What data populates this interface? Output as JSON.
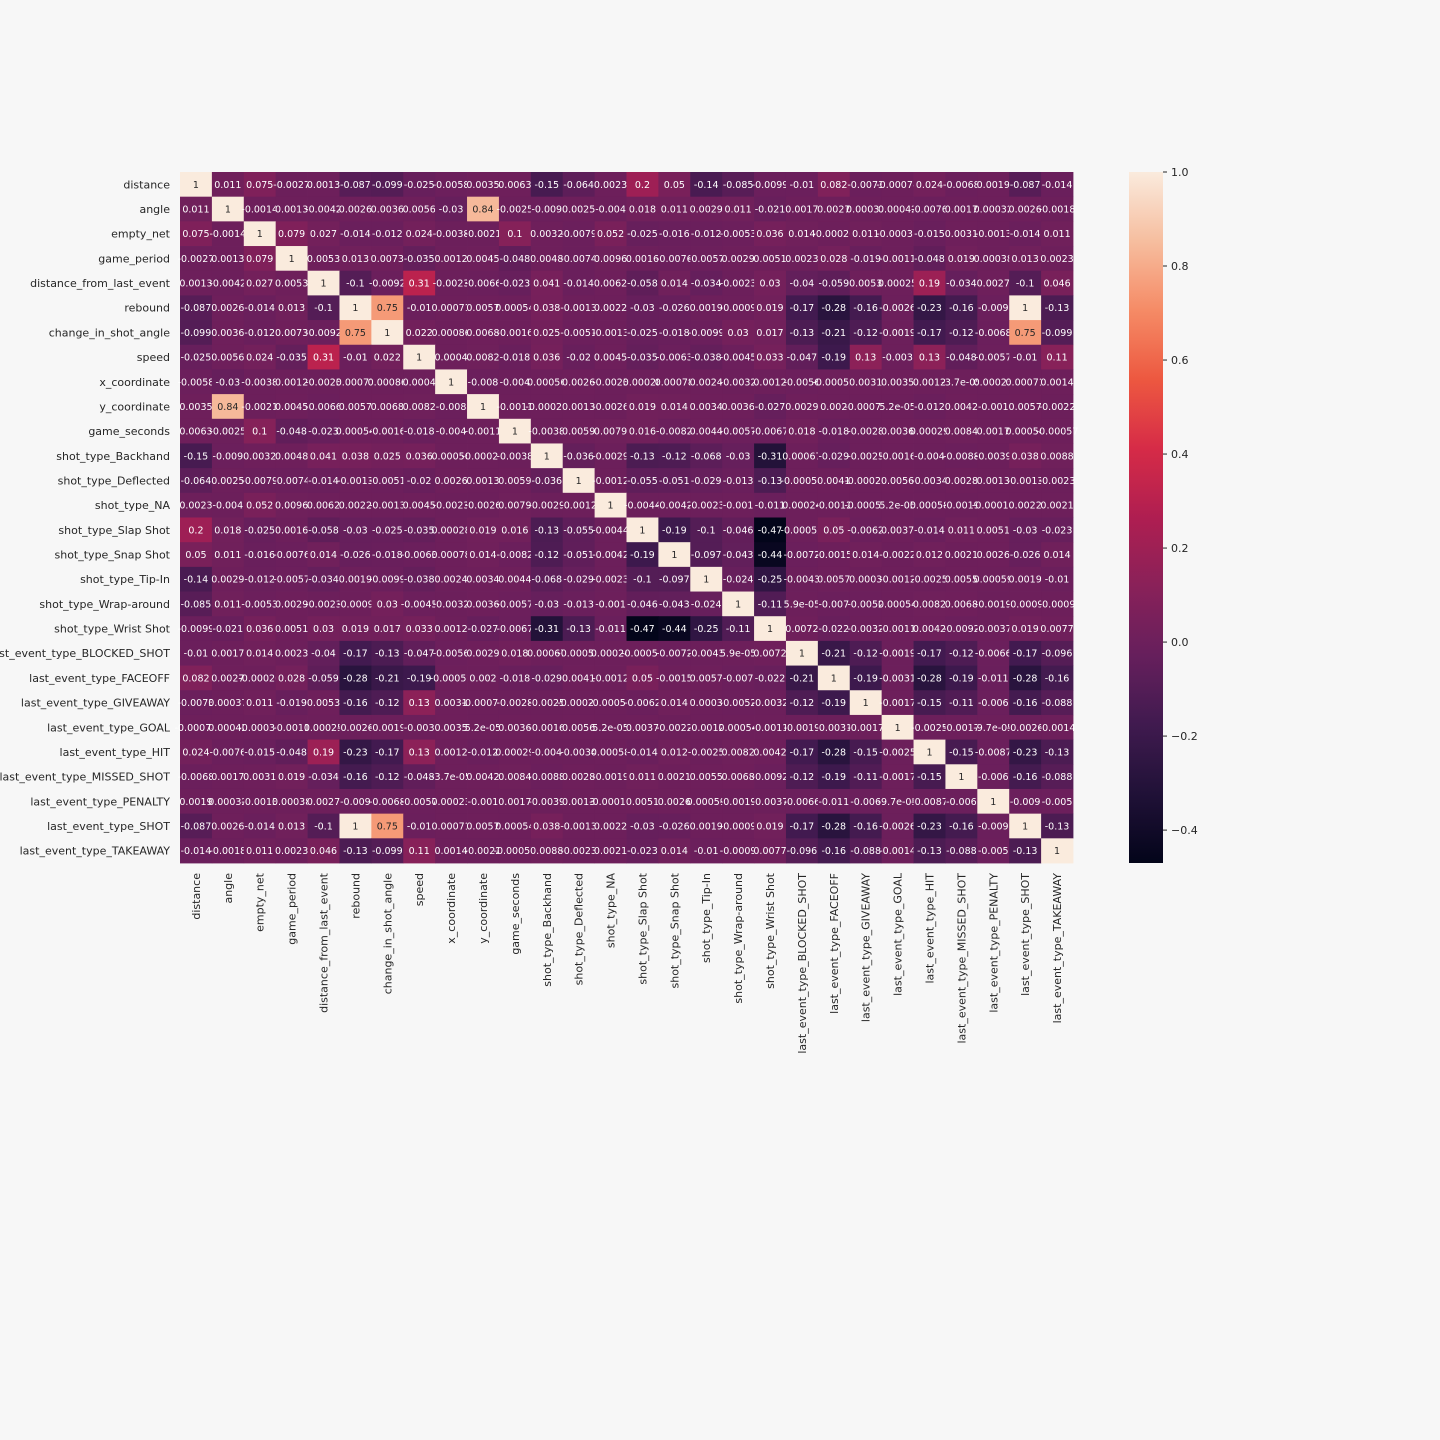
{
  "chart_data": {
    "type": "heatmap",
    "labels": [
      "distance",
      "angle",
      "empty_net",
      "game_period",
      "distance_from_last_event",
      "rebound",
      "change_in_shot_angle",
      "speed",
      "x_coordinate",
      "y_coordinate",
      "game_seconds",
      "shot_type_Backhand",
      "shot_type_Deflected",
      "shot_type_NA",
      "shot_type_Slap Shot",
      "shot_type_Snap Shot",
      "shot_type_Tip-In",
      "shot_type_Wrap-around",
      "shot_type_Wrist Shot",
      "last_event_type_BLOCKED_SHOT",
      "last_event_type_FACEOFF",
      "last_event_type_GIVEAWAY",
      "last_event_type_GOAL",
      "last_event_type_HIT",
      "last_event_type_MISSED_SHOT",
      "last_event_type_PENALTY",
      "last_event_type_SHOT",
      "last_event_type_TAKEAWAY"
    ],
    "cells": [
      [
        "1",
        "0.011",
        "0.075",
        "-0.0027",
        "0.0013",
        "-0.087",
        "-0.099",
        "-0.025",
        "-0.0058",
        "0.0035",
        "0.0063",
        "-0.15",
        "-0.064",
        "0.0023",
        "0.2",
        "0.05",
        "-0.14",
        "-0.085",
        "-0.0099",
        "-0.01",
        "0.082",
        "-0.0073",
        "-0.00074",
        "0.024",
        "-0.0068",
        "0.0019",
        "-0.087",
        "-0.014"
      ],
      [
        "0.011",
        "1",
        "-0.0014",
        "0.0013",
        "-0.0042",
        "0.0026",
        "0.0036",
        "0.0056",
        "-0.03",
        "0.84",
        "-0.0025",
        "-0.009",
        "0.0025",
        "-0.004",
        "0.018",
        "0.011",
        "0.0029",
        "0.011",
        "-0.021",
        "0.0017",
        "0.0027",
        "0.00037",
        "0.00042",
        "-0.0076",
        "0.0017",
        "0.00032",
        "0.0026",
        "-0.0018"
      ],
      [
        "0.075",
        "-0.0014",
        "1",
        "0.079",
        "0.027",
        "-0.014",
        "-0.012",
        "0.024",
        "-0.0038",
        "-0.0021",
        "0.1",
        "0.0032",
        "-0.0079",
        "0.052",
        "-0.025",
        "-0.016",
        "-0.012",
        "-0.0053",
        "0.036",
        "0.014",
        "-0.00026",
        "0.011",
        "-0.00036",
        "-0.015",
        "0.0031",
        "-0.0013",
        "-0.014",
        "0.011"
      ],
      [
        "-0.0027",
        "0.0013",
        "0.079",
        "1",
        "0.0053",
        "0.013",
        "0.0073",
        "-0.035",
        "0.0012",
        "0.0045",
        "-0.048",
        "0.0048",
        "-0.0074",
        "0.0096",
        "0.0016",
        "-0.0076",
        "-0.0057",
        "0.0029",
        "0.0051",
        "0.0023",
        "0.028",
        "-0.019",
        "-0.0011",
        "-0.048",
        "0.019",
        "0.00038",
        "0.013",
        "0.0023"
      ],
      [
        "0.0013",
        "-0.0042",
        "0.027",
        "0.0053",
        "1",
        "-0.1",
        "-0.0092",
        "0.31",
        "-0.0023",
        "-0.0066",
        "-0.023",
        "0.041",
        "-0.014",
        "0.0062",
        "-0.058",
        "0.014",
        "-0.034",
        "-0.0023",
        "0.03",
        "-0.04",
        "-0.059",
        "0.0053",
        "0.00025",
        "0.19",
        "-0.034",
        "0.0027",
        "-0.1",
        "0.046"
      ],
      [
        "-0.087",
        "0.0026",
        "-0.014",
        "0.013",
        "-0.1",
        "1",
        "0.75",
        "-0.01",
        "0.00071",
        "0.0057",
        "0.00054",
        "0.038",
        "-0.0013",
        "0.0022",
        "-0.03",
        "-0.026",
        "0.0019",
        "-0.0009",
        "0.019",
        "-0.17",
        "-0.28",
        "-0.16",
        "-0.0026",
        "-0.23",
        "-0.16",
        "-0.009",
        "1",
        "-0.13"
      ],
      [
        "-0.099",
        "0.0036",
        "-0.012",
        "0.0073",
        "-0.0092",
        "0.75",
        "1",
        "0.022",
        "0.00086",
        "0.0068",
        "-0.0016",
        "0.025",
        "-0.0051",
        "-0.0013",
        "-0.025",
        "-0.018",
        "-0.0099",
        "0.03",
        "0.017",
        "-0.13",
        "-0.21",
        "-0.12",
        "-0.0019",
        "-0.17",
        "-0.12",
        "-0.0068",
        "0.75",
        "-0.099"
      ],
      [
        "-0.025",
        "0.0056",
        "0.024",
        "-0.035",
        "0.31",
        "-0.01",
        "0.022",
        "1",
        "0.0004",
        "0.0082",
        "-0.018",
        "0.036",
        "-0.02",
        "0.0045",
        "-0.035",
        "-0.0063",
        "-0.038",
        "-0.0045",
        "0.033",
        "-0.047",
        "-0.19",
        "0.13",
        "-0.003",
        "0.13",
        "-0.048",
        "-0.0057",
        "-0.01",
        "0.11"
      ],
      [
        "-0.0058",
        "-0.03",
        "-0.0038",
        "0.0012",
        "-0.0023",
        "0.00071",
        "0.00086",
        "0.0004",
        "1",
        "-0.008",
        "-0.004",
        "0.00056",
        "0.0026",
        "-0.0023",
        "0.00028",
        "0.00078",
        "0.0024",
        "-0.0032",
        "0.0012",
        "-0.0056",
        "-0.00052",
        "0.0031",
        "0.0035",
        "0.0012",
        "-3.7e-05",
        "0.00023",
        "0.00071",
        "0.0014"
      ],
      [
        "0.0035",
        "0.84",
        "-0.0021",
        "0.0045",
        "-0.0066",
        "0.0057",
        "0.0068",
        "0.0082",
        "-0.008",
        "1",
        "-0.0011",
        "-0.00023",
        "0.0013",
        "-0.0026",
        "0.019",
        "0.014",
        "0.0034",
        "0.0036",
        "-0.027",
        "0.0029",
        "0.002",
        "-0.00076",
        "5.2e-05",
        "-0.012",
        "0.0042",
        "-0.001",
        "0.0057",
        "-0.0022"
      ],
      [
        "0.0063",
        "-0.0025",
        "0.1",
        "-0.048",
        "-0.023",
        "0.00054",
        "-0.0016",
        "-0.018",
        "-0.004",
        "-0.0011",
        "1",
        "-0.0038",
        "0.0059",
        "0.0079",
        "0.016",
        "-0.0082",
        "0.0044",
        "-0.0057",
        "-0.0067",
        "0.018",
        "-0.018",
        "-0.0028",
        "0.0036",
        "0.00029",
        "0.0084",
        "0.0017",
        "0.00054",
        "-0.00057"
      ],
      [
        "-0.15",
        "-0.009",
        "0.0032",
        "0.0048",
        "0.041",
        "0.038",
        "0.025",
        "0.036",
        "0.00056",
        "-0.00023",
        "-0.0038",
        "1",
        "-0.036",
        "-0.0029",
        "-0.13",
        "-0.12",
        "-0.068",
        "-0.03",
        "-0.31",
        "0.00067",
        "-0.029",
        "-0.0025",
        "-0.0016",
        "-0.004",
        "-0.0088",
        "-0.0039",
        "0.038",
        "0.0088"
      ],
      [
        "-0.064",
        "0.0025",
        "-0.0079",
        "-0.0074",
        "-0.014",
        "-0.0013",
        "-0.0051",
        "-0.02",
        "0.0026",
        "0.0013",
        "0.0059",
        "-0.036",
        "1",
        "-0.0012",
        "-0.055",
        "-0.051",
        "-0.029",
        "-0.013",
        "-0.13",
        "-0.00058",
        "0.0041",
        "-0.00022",
        "0.0056",
        "-0.0034",
        "0.0028",
        "0.0013",
        "-0.0013",
        "-0.0023"
      ],
      [
        "0.0023",
        "-0.004",
        "0.052",
        "0.0096",
        "0.0062",
        "0.0022",
        "-0.0013",
        "0.0045",
        "-0.0023",
        "-0.0026",
        "0.0079",
        "-0.0029",
        "-0.0012",
        "1",
        "-0.0044",
        "-0.0042",
        "-0.0023",
        "-0.001",
        "-0.011",
        "0.00024",
        "-0.0012",
        "-0.00052",
        "5.2e-05",
        "0.00058",
        "-0.0019",
        "-0.00018",
        "0.0022",
        "0.0021"
      ],
      [
        "0.2",
        "0.018",
        "-0.025",
        "0.0016",
        "-0.058",
        "-0.03",
        "-0.025",
        "-0.035",
        "0.00028",
        "0.019",
        "0.016",
        "-0.13",
        "-0.055",
        "-0.0044",
        "1",
        "-0.19",
        "-0.1",
        "-0.046",
        "-0.47",
        "-0.00052",
        "0.05",
        "-0.0062",
        "0.0037",
        "-0.014",
        "0.011",
        "0.0051",
        "-0.03",
        "-0.023"
      ],
      [
        "0.05",
        "0.011",
        "-0.016",
        "-0.0076",
        "0.014",
        "-0.026",
        "-0.018",
        "-0.0063",
        "0.00078",
        "0.014",
        "-0.0082",
        "-0.12",
        "-0.051",
        "-0.0042",
        "-0.19",
        "1",
        "-0.097",
        "-0.043",
        "-0.44",
        "-0.0072",
        "-0.0015",
        "0.014",
        "-0.0022",
        "0.012",
        "0.0021",
        "0.0026",
        "-0.026",
        "0.014"
      ],
      [
        "-0.14",
        "0.0029",
        "-0.012",
        "-0.0057",
        "-0.034",
        "0.0019",
        "-0.0099",
        "-0.038",
        "0.0024",
        "0.0034",
        "0.0044",
        "-0.068",
        "-0.029",
        "-0.0023",
        "-0.1",
        "-0.097",
        "1",
        "-0.024",
        "-0.25",
        "-0.0043",
        "0.0057",
        "0.0003",
        "-0.0012",
        "-0.0025",
        "0.0055",
        "0.00059",
        "0.0019",
        "-0.01"
      ],
      [
        "-0.085",
        "0.011",
        "-0.0053",
        "0.0029",
        "-0.0023",
        "-0.0009",
        "0.03",
        "-0.0045",
        "-0.0032",
        "0.0036",
        "-0.0057",
        "-0.03",
        "-0.013",
        "-0.001",
        "-0.046",
        "-0.043",
        "-0.024",
        "1",
        "-0.11",
        "5.9e-05",
        "-0.007",
        "-0.0052",
        "0.00054",
        "0.0082",
        "0.0068",
        "-0.0019",
        "-0.0009",
        "-0.0009"
      ],
      [
        "-0.0099",
        "-0.021",
        "0.036",
        "0.0051",
        "0.03",
        "0.019",
        "0.017",
        "0.033",
        "0.0012",
        "-0.027",
        "-0.0067",
        "-0.31",
        "-0.13",
        "-0.011",
        "-0.47",
        "-0.44",
        "-0.25",
        "-0.11",
        "1",
        "0.0072",
        "-0.022",
        "-0.0032",
        "-0.0011",
        "0.0042",
        "-0.0092",
        "-0.0037",
        "0.019",
        "0.0077"
      ],
      [
        "-0.01",
        "0.0017",
        "0.014",
        "0.0023",
        "-0.04",
        "-0.17",
        "-0.13",
        "-0.047",
        "-0.0056",
        "0.0029",
        "0.018",
        "0.00067",
        "-0.00058",
        "0.00024",
        "-0.00052",
        "-0.0072",
        "-0.0043",
        "5.9e-05",
        "0.0072",
        "1",
        "-0.21",
        "-0.12",
        "-0.0019",
        "-0.17",
        "-0.12",
        "-0.0066",
        "-0.17",
        "-0.096"
      ],
      [
        "0.082",
        "0.0027",
        "-0.00026",
        "0.028",
        "-0.059",
        "-0.28",
        "-0.21",
        "-0.19",
        "-0.00052",
        "0.002",
        "-0.018",
        "-0.029",
        "0.0041",
        "-0.0012",
        "0.05",
        "-0.0015",
        "0.0057",
        "-0.007",
        "-0.022",
        "-0.21",
        "1",
        "-0.19",
        "-0.0031",
        "-0.28",
        "-0.19",
        "-0.011",
        "-0.28",
        "-0.16"
      ],
      [
        "-0.0073",
        "0.00037",
        "0.011",
        "-0.019",
        "0.0053",
        "-0.16",
        "-0.12",
        "0.13",
        "0.0031",
        "-0.00076",
        "-0.0028",
        "-0.0025",
        "-0.00022",
        "-0.00052",
        "-0.0062",
        "0.014",
        "0.0003",
        "-0.0052",
        "-0.0032",
        "-0.12",
        "-0.19",
        "1",
        "-0.0017",
        "-0.15",
        "-0.11",
        "-0.006",
        "-0.16",
        "-0.088"
      ],
      [
        "-0.00074",
        "0.00042",
        "-0.00036",
        "-0.0011",
        "0.00025",
        "-0.0026",
        "-0.0019",
        "-0.003",
        "0.0035",
        "5.2e-05",
        "0.0036",
        "-0.0016",
        "0.0056",
        "5.2e-05",
        "0.0037",
        "-0.0022",
        "-0.0012",
        "0.00054",
        "-0.0011",
        "-0.0019",
        "-0.0031",
        "-0.0017",
        "1",
        "-0.0025",
        "-0.0017",
        "-9.7e-05",
        "-0.0026",
        "-0.0014"
      ],
      [
        "0.024",
        "-0.0076",
        "-0.015",
        "-0.048",
        "0.19",
        "-0.23",
        "-0.17",
        "0.13",
        "0.0012",
        "-0.012",
        "0.00029",
        "-0.004",
        "-0.0034",
        "0.00058",
        "-0.014",
        "0.012",
        "-0.0025",
        "0.0082",
        "0.0042",
        "-0.17",
        "-0.28",
        "-0.15",
        "-0.0025",
        "1",
        "-0.15",
        "-0.0087",
        "-0.23",
        "-0.13"
      ],
      [
        "-0.0068",
        "0.0017",
        "0.0031",
        "0.019",
        "-0.034",
        "-0.16",
        "-0.12",
        "-0.048",
        "-3.7e-05",
        "0.0042",
        "0.0084",
        "-0.0088",
        "0.0028",
        "-0.0019",
        "0.011",
        "0.0021",
        "0.0055",
        "0.0068",
        "-0.0092",
        "-0.12",
        "-0.19",
        "-0.11",
        "-0.0017",
        "-0.15",
        "1",
        "-0.006",
        "-0.16",
        "-0.088"
      ],
      [
        "0.0019",
        "0.00032",
        "-0.0013",
        "0.00038",
        "0.0027",
        "-0.009",
        "-0.0068",
        "-0.0057",
        "0.00023",
        "-0.001",
        "0.0017",
        "-0.0039",
        "0.0013",
        "-0.00018",
        "0.0051",
        "0.0026",
        "0.00059",
        "-0.0019",
        "-0.0037",
        "-0.0066",
        "-0.011",
        "-0.006",
        "-9.7e-05",
        "-0.0087",
        "-0.006",
        "1",
        "-0.009",
        "-0.005"
      ],
      [
        "-0.087",
        "0.0026",
        "-0.014",
        "0.013",
        "-0.1",
        "1",
        "0.75",
        "-0.01",
        "0.00071",
        "0.0057",
        "0.00054",
        "0.038",
        "-0.0013",
        "0.0022",
        "-0.03",
        "-0.026",
        "0.0019",
        "-0.0009",
        "0.019",
        "-0.17",
        "-0.28",
        "-0.16",
        "-0.0026",
        "-0.23",
        "-0.16",
        "-0.009",
        "1",
        "-0.13"
      ],
      [
        "-0.014",
        "-0.0018",
        "0.011",
        "0.0023",
        "0.046",
        "-0.13",
        "-0.099",
        "0.11",
        "0.0014",
        "-0.0022",
        "-0.00057",
        "0.0088",
        "-0.0023",
        "0.0021",
        "-0.023",
        "0.014",
        "-0.01",
        "-0.0009",
        "0.0077",
        "-0.096",
        "-0.16",
        "-0.088",
        "-0.0014",
        "-0.13",
        "-0.088",
        "-0.005",
        "-0.13",
        "1"
      ]
    ],
    "colorbar": {
      "min": -0.47,
      "max": 1.0,
      "ticks": [
        "1.0",
        "0.8",
        "0.6",
        "0.4",
        "0.2",
        "0.0",
        "−0.2",
        "−0.4"
      ],
      "tick_values": [
        1.0,
        0.8,
        0.6,
        0.4,
        0.2,
        0.0,
        -0.2,
        -0.4
      ]
    },
    "colormap": "rocket",
    "grid": false,
    "legend": "colorbar-right",
    "title": "",
    "xlabel": "",
    "ylabel": ""
  }
}
